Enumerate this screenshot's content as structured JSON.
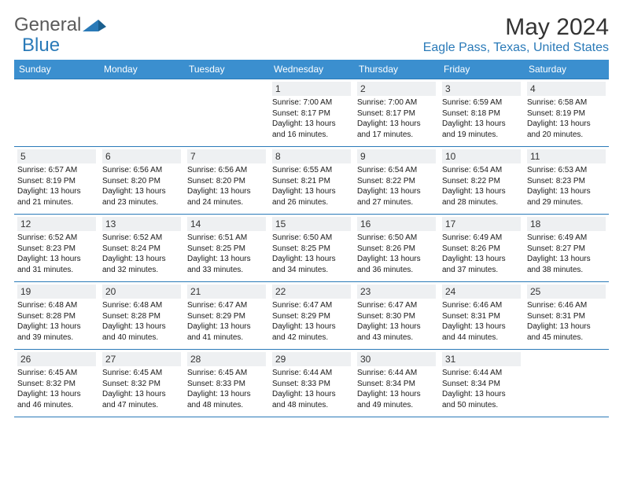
{
  "logo": {
    "text1": "General",
    "text2": "Blue"
  },
  "title": "May 2024",
  "location": "Eagle Pass, Texas, United States",
  "colors": {
    "header_bg": "#3b8fcf",
    "accent": "#2a7ab8",
    "daynum_bg": "#eef0f2",
    "text": "#1a1a1a",
    "logo_gray": "#5a5a5a"
  },
  "day_headers": [
    "Sunday",
    "Monday",
    "Tuesday",
    "Wednesday",
    "Thursday",
    "Friday",
    "Saturday"
  ],
  "weeks": [
    [
      null,
      null,
      null,
      {
        "n": "1",
        "sr": "7:00 AM",
        "ss": "8:17 PM",
        "dl": "13 hours and 16 minutes."
      },
      {
        "n": "2",
        "sr": "7:00 AM",
        "ss": "8:17 PM",
        "dl": "13 hours and 17 minutes."
      },
      {
        "n": "3",
        "sr": "6:59 AM",
        "ss": "8:18 PM",
        "dl": "13 hours and 19 minutes."
      },
      {
        "n": "4",
        "sr": "6:58 AM",
        "ss": "8:19 PM",
        "dl": "13 hours and 20 minutes."
      }
    ],
    [
      {
        "n": "5",
        "sr": "6:57 AM",
        "ss": "8:19 PM",
        "dl": "13 hours and 21 minutes."
      },
      {
        "n": "6",
        "sr": "6:56 AM",
        "ss": "8:20 PM",
        "dl": "13 hours and 23 minutes."
      },
      {
        "n": "7",
        "sr": "6:56 AM",
        "ss": "8:20 PM",
        "dl": "13 hours and 24 minutes."
      },
      {
        "n": "8",
        "sr": "6:55 AM",
        "ss": "8:21 PM",
        "dl": "13 hours and 26 minutes."
      },
      {
        "n": "9",
        "sr": "6:54 AM",
        "ss": "8:22 PM",
        "dl": "13 hours and 27 minutes."
      },
      {
        "n": "10",
        "sr": "6:54 AM",
        "ss": "8:22 PM",
        "dl": "13 hours and 28 minutes."
      },
      {
        "n": "11",
        "sr": "6:53 AM",
        "ss": "8:23 PM",
        "dl": "13 hours and 29 minutes."
      }
    ],
    [
      {
        "n": "12",
        "sr": "6:52 AM",
        "ss": "8:23 PM",
        "dl": "13 hours and 31 minutes."
      },
      {
        "n": "13",
        "sr": "6:52 AM",
        "ss": "8:24 PM",
        "dl": "13 hours and 32 minutes."
      },
      {
        "n": "14",
        "sr": "6:51 AM",
        "ss": "8:25 PM",
        "dl": "13 hours and 33 minutes."
      },
      {
        "n": "15",
        "sr": "6:50 AM",
        "ss": "8:25 PM",
        "dl": "13 hours and 34 minutes."
      },
      {
        "n": "16",
        "sr": "6:50 AM",
        "ss": "8:26 PM",
        "dl": "13 hours and 36 minutes."
      },
      {
        "n": "17",
        "sr": "6:49 AM",
        "ss": "8:26 PM",
        "dl": "13 hours and 37 minutes."
      },
      {
        "n": "18",
        "sr": "6:49 AM",
        "ss": "8:27 PM",
        "dl": "13 hours and 38 minutes."
      }
    ],
    [
      {
        "n": "19",
        "sr": "6:48 AM",
        "ss": "8:28 PM",
        "dl": "13 hours and 39 minutes."
      },
      {
        "n": "20",
        "sr": "6:48 AM",
        "ss": "8:28 PM",
        "dl": "13 hours and 40 minutes."
      },
      {
        "n": "21",
        "sr": "6:47 AM",
        "ss": "8:29 PM",
        "dl": "13 hours and 41 minutes."
      },
      {
        "n": "22",
        "sr": "6:47 AM",
        "ss": "8:29 PM",
        "dl": "13 hours and 42 minutes."
      },
      {
        "n": "23",
        "sr": "6:47 AM",
        "ss": "8:30 PM",
        "dl": "13 hours and 43 minutes."
      },
      {
        "n": "24",
        "sr": "6:46 AM",
        "ss": "8:31 PM",
        "dl": "13 hours and 44 minutes."
      },
      {
        "n": "25",
        "sr": "6:46 AM",
        "ss": "8:31 PM",
        "dl": "13 hours and 45 minutes."
      }
    ],
    [
      {
        "n": "26",
        "sr": "6:45 AM",
        "ss": "8:32 PM",
        "dl": "13 hours and 46 minutes."
      },
      {
        "n": "27",
        "sr": "6:45 AM",
        "ss": "8:32 PM",
        "dl": "13 hours and 47 minutes."
      },
      {
        "n": "28",
        "sr": "6:45 AM",
        "ss": "8:33 PM",
        "dl": "13 hours and 48 minutes."
      },
      {
        "n": "29",
        "sr": "6:44 AM",
        "ss": "8:33 PM",
        "dl": "13 hours and 48 minutes."
      },
      {
        "n": "30",
        "sr": "6:44 AM",
        "ss": "8:34 PM",
        "dl": "13 hours and 49 minutes."
      },
      {
        "n": "31",
        "sr": "6:44 AM",
        "ss": "8:34 PM",
        "dl": "13 hours and 50 minutes."
      },
      null
    ]
  ],
  "labels": {
    "sunrise": "Sunrise:",
    "sunset": "Sunset:",
    "daylight": "Daylight:"
  }
}
